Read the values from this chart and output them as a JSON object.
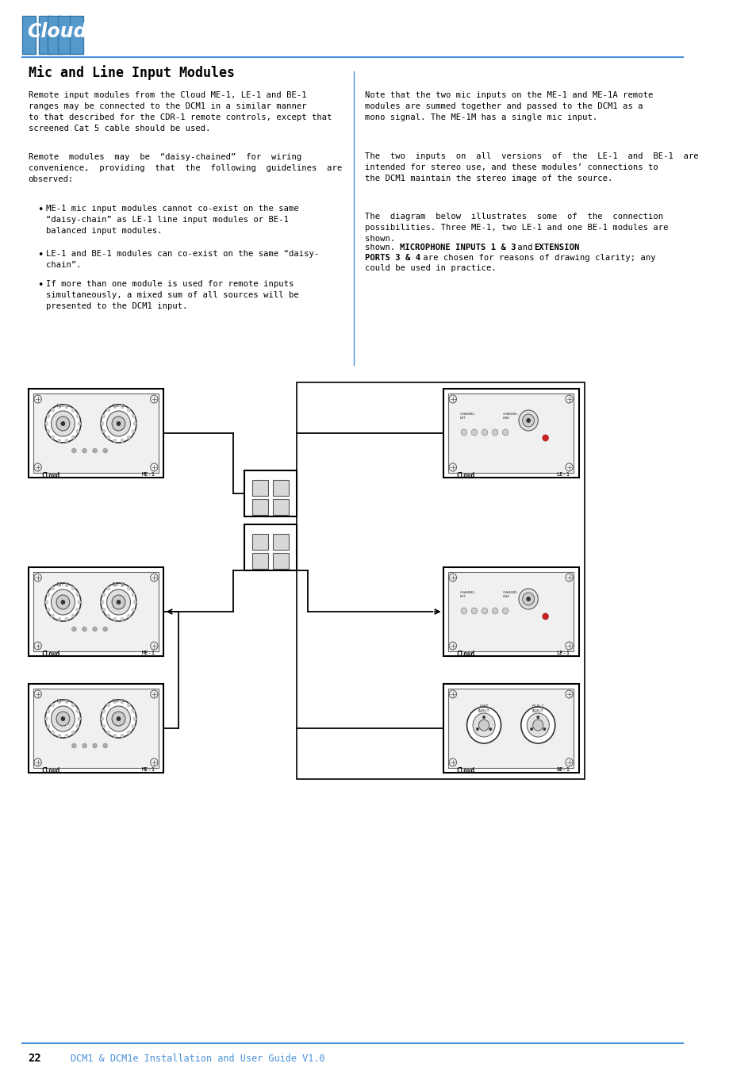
{
  "page_width": 9.54,
  "page_height": 13.5,
  "bg_color": "#ffffff",
  "title": "Mic and Line Input Modules",
  "footer_page": "22",
  "footer_text": "DCM1 & DCM1e Installation and User Guide V1.0",
  "header_line_color": "#4a90d9",
  "footer_line_color": "#4a90d9",
  "footer_text_color": "#4a90d9",
  "logo_bg_color": "#5599cc",
  "left_para1": "Remote input modules from the Cloud ME-1, LE-1 and BE-1\nranges may be connected to the DCM1 in a similar manner\nto that described for the CDR-1 remote controls, except that\nscreened Cat 5 cable should be used.",
  "left_para2": "Remote  modules  may  be  “daisy-chained”  for  wiring\nconvenience,  providing  that  the  following  guidelines  are\nobserved:",
  "bullet1": "ME-1 mic input modules cannot co-exist on the same\n“daisy-chain” as LE-1 line input modules or BE-1\nbalanced input modules.",
  "bullet2": "LE-1 and BE-1 modules can co-exist on the same “daisy-\nchain”.",
  "bullet3": "If more than one module is used for remote inputs\nsimultaneously, a mixed sum of all sources will be\npresented to the DCM1 input.",
  "right_para1": "Note that the two mic inputs on the ME-1 and ME-1A remote\nmodules are summed together and passed to the DCM1 as a\nmono signal. The ME-1M has a single mic input.",
  "right_para2": "The  two  inputs  on  all  versions  of  the  LE-1  and  BE-1  are\nintended for stereo use, and these modules’ connections to\nthe DCM1 maintain the stereo image of the source.",
  "right_para3a": "The  diagram  below  illustrates  some  of  the  connection\npossibilities. Three ME-1, two LE-1 and one BE-1 modules are\nshown. ",
  "right_para3b": "MICROPHONE INPUTS 1 & 3",
  "right_para3c": " and ",
  "right_para3d": "EXTENSION",
  "right_para3e": "PORTS 3 & 4",
  "right_para3f": " are chosen for reasons of drawing clarity; any",
  "right_para3g": "could be used in practice."
}
